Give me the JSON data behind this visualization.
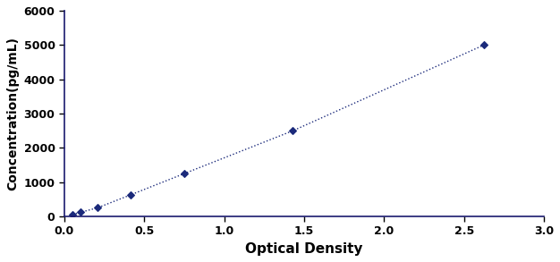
{
  "x": [
    0.052,
    0.103,
    0.206,
    0.412,
    0.75,
    1.43,
    2.625
  ],
  "y": [
    62.5,
    125,
    250,
    625,
    1250,
    2500,
    5000
  ],
  "line_color": "#1B2A7B",
  "marker": "D",
  "marker_size": 4,
  "marker_color": "#1B2A7B",
  "line_style": ":",
  "line_width": 1.0,
  "xlabel": "Optical Density",
  "ylabel": "Concentration(pg/mL)",
  "xlim": [
    0,
    3
  ],
  "ylim": [
    0,
    6000
  ],
  "xticks": [
    0,
    0.5,
    1,
    1.5,
    2,
    2.5,
    3
  ],
  "yticks": [
    0,
    1000,
    2000,
    3000,
    4000,
    5000,
    6000
  ],
  "xlabel_fontsize": 11,
  "ylabel_fontsize": 10,
  "tick_fontsize": 9,
  "background_color": "#ffffff",
  "spine_color": "#1a1a6e",
  "tick_color": "#000000"
}
